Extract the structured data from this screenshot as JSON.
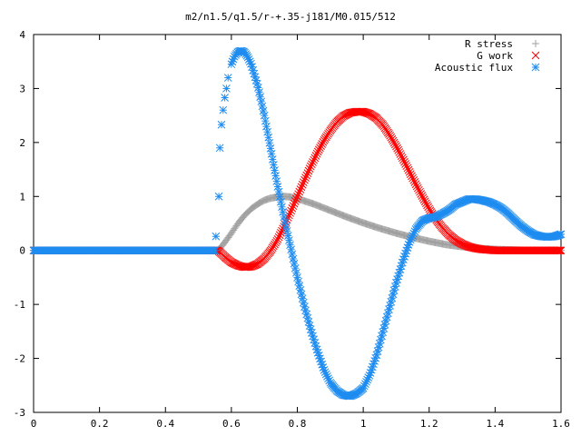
{
  "chart_data": {
    "type": "scatter",
    "title": "m2/n1.5/q1.5/r-+.35-j181/M0.015/512",
    "xlabel": "",
    "ylabel": "",
    "xlim": [
      0,
      1.6
    ],
    "ylim": [
      -3,
      4
    ],
    "x_ticks": [
      "0",
      "0.2",
      "0.4",
      "0.6",
      "0.8",
      "1",
      "1.2",
      "1.4",
      "1.6"
    ],
    "y_ticks": [
      "-3",
      "-2",
      "-1",
      "0",
      "1",
      "2",
      "3",
      "4"
    ],
    "grid": false,
    "legend_position": "top-right",
    "series": [
      {
        "name": "R stress",
        "marker": "plus",
        "color": "#a0a0a0",
        "x": [
          0.0,
          0.1,
          0.2,
          0.3,
          0.4,
          0.5,
          0.56,
          0.58,
          0.6,
          0.62,
          0.64,
          0.66,
          0.68,
          0.7,
          0.72,
          0.74,
          0.76,
          0.78,
          0.8,
          0.85,
          0.9,
          0.95,
          1.0,
          1.05,
          1.1,
          1.15,
          1.2,
          1.25,
          1.3,
          1.35,
          1.4,
          1.45,
          1.5,
          1.55,
          1.6
        ],
        "y": [
          0,
          0,
          0,
          0,
          0,
          0,
          0.0,
          0.15,
          0.32,
          0.5,
          0.65,
          0.77,
          0.86,
          0.93,
          0.97,
          0.99,
          1.0,
          0.99,
          0.96,
          0.86,
          0.74,
          0.62,
          0.51,
          0.41,
          0.32,
          0.24,
          0.17,
          0.11,
          0.07,
          0.04,
          0.02,
          0.01,
          0.0,
          0.0,
          0.0
        ]
      },
      {
        "name": "G work",
        "marker": "cross",
        "color": "#ff0000",
        "x": [
          0.0,
          0.1,
          0.2,
          0.3,
          0.4,
          0.5,
          0.56,
          0.58,
          0.6,
          0.62,
          0.64,
          0.66,
          0.68,
          0.7,
          0.72,
          0.74,
          0.76,
          0.78,
          0.8,
          0.82,
          0.84,
          0.86,
          0.88,
          0.9,
          0.92,
          0.94,
          0.96,
          0.98,
          1.0,
          1.02,
          1.04,
          1.06,
          1.08,
          1.1,
          1.12,
          1.14,
          1.16,
          1.18,
          1.2,
          1.22,
          1.24,
          1.26,
          1.28,
          1.3,
          1.32,
          1.34,
          1.36,
          1.38,
          1.4,
          1.45,
          1.5,
          1.55,
          1.6
        ],
        "y": [
          0,
          0,
          0,
          0,
          0,
          0,
          0.0,
          -0.12,
          -0.22,
          -0.28,
          -0.31,
          -0.3,
          -0.25,
          -0.15,
          0.0,
          0.2,
          0.45,
          0.72,
          1.0,
          1.28,
          1.55,
          1.8,
          2.03,
          2.22,
          2.38,
          2.49,
          2.55,
          2.57,
          2.57,
          2.53,
          2.45,
          2.32,
          2.14,
          1.93,
          1.7,
          1.46,
          1.22,
          0.99,
          0.77,
          0.58,
          0.42,
          0.29,
          0.19,
          0.12,
          0.07,
          0.04,
          0.02,
          0.01,
          0.0,
          0.0,
          0.0,
          0.0,
          0.0
        ]
      },
      {
        "name": "Acoustic flux",
        "marker": "star",
        "color": "#1e8cf0",
        "x": [
          0.0,
          0.1,
          0.2,
          0.3,
          0.4,
          0.5,
          0.55,
          0.562,
          0.565,
          0.57,
          0.575,
          0.58,
          0.585,
          0.59,
          0.6,
          0.61,
          0.62,
          0.63,
          0.64,
          0.65,
          0.66,
          0.68,
          0.7,
          0.72,
          0.74,
          0.76,
          0.78,
          0.8,
          0.82,
          0.84,
          0.86,
          0.88,
          0.9,
          0.92,
          0.94,
          0.96,
          0.98,
          1.0,
          1.02,
          1.04,
          1.06,
          1.08,
          1.1,
          1.12,
          1.14,
          1.16,
          1.18,
          1.2,
          1.22,
          1.24,
          1.26,
          1.28,
          1.3,
          1.32,
          1.34,
          1.36,
          1.38,
          1.4,
          1.42,
          1.44,
          1.46,
          1.48,
          1.5,
          1.52,
          1.54,
          1.56,
          1.58,
          1.6
        ],
        "y": [
          0,
          0,
          0,
          0,
          0,
          0,
          0,
          1.0,
          1.9,
          2.33,
          2.6,
          2.83,
          3.0,
          3.2,
          3.45,
          3.6,
          3.68,
          3.7,
          3.67,
          3.58,
          3.45,
          3.05,
          2.5,
          1.85,
          1.2,
          0.6,
          0.05,
          -0.5,
          -1.0,
          -1.45,
          -1.85,
          -2.2,
          -2.45,
          -2.6,
          -2.68,
          -2.7,
          -2.65,
          -2.55,
          -2.3,
          -1.95,
          -1.5,
          -1.05,
          -0.6,
          -0.2,
          0.15,
          0.4,
          0.55,
          0.6,
          0.62,
          0.68,
          0.75,
          0.85,
          0.9,
          0.95,
          0.95,
          0.93,
          0.9,
          0.85,
          0.78,
          0.68,
          0.56,
          0.45,
          0.36,
          0.29,
          0.26,
          0.25,
          0.26,
          0.3
        ]
      }
    ]
  }
}
